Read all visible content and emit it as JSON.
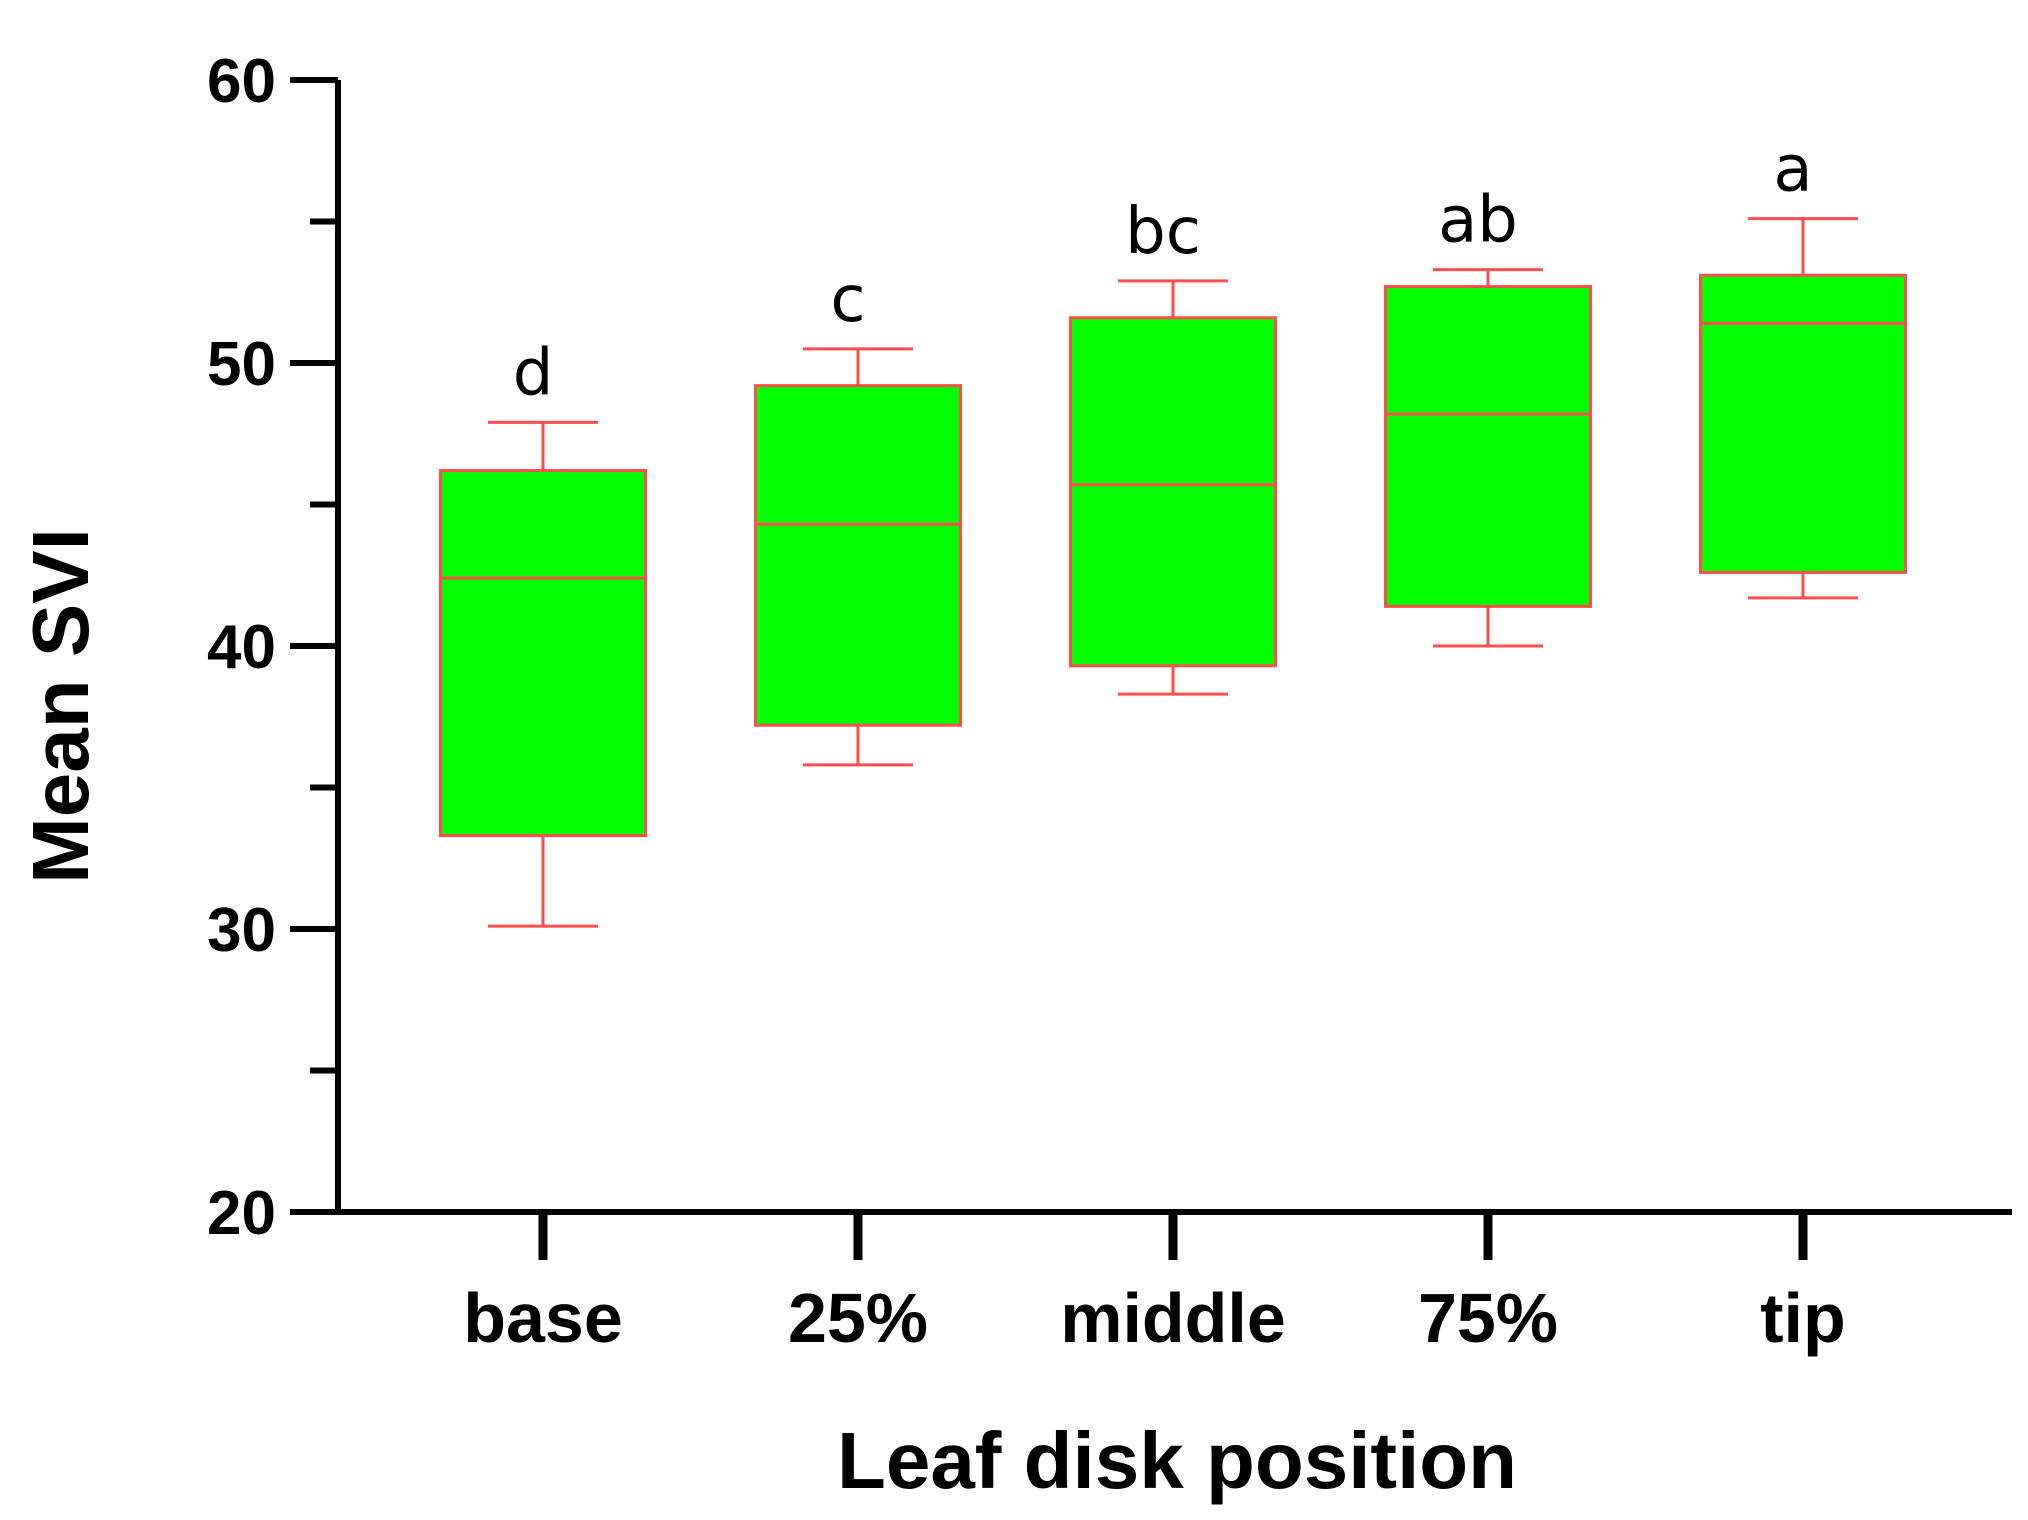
{
  "chart_data": {
    "type": "box",
    "title": "",
    "xlabel": "Leaf disk position",
    "ylabel": "Mean SVI",
    "ylim": [
      20,
      60
    ],
    "y_ticks": [
      20,
      30,
      40,
      50,
      60
    ],
    "y_minor_ticks": [
      25,
      35,
      45,
      55
    ],
    "categories": [
      "base",
      "25%",
      "middle",
      "75%",
      "tip"
    ],
    "boxes": [
      {
        "category": "base",
        "min": 30.1,
        "q1": 33.3,
        "median": 42.4,
        "q3": 46.2,
        "max": 47.9,
        "letter": "d"
      },
      {
        "category": "25%",
        "min": 35.8,
        "q1": 37.2,
        "median": 44.3,
        "q3": 49.2,
        "max": 50.5,
        "letter": "c"
      },
      {
        "category": "middle",
        "min": 38.3,
        "q1": 39.3,
        "median": 45.7,
        "q3": 51.6,
        "max": 52.9,
        "letter": "bc"
      },
      {
        "category": "75%",
        "min": 40.0,
        "q1": 41.4,
        "median": 48.2,
        "q3": 52.7,
        "max": 53.3,
        "letter": "ab"
      },
      {
        "category": "tip",
        "min": 41.7,
        "q1": 42.6,
        "median": 51.4,
        "q3": 53.1,
        "max": 55.1,
        "letter": "a"
      }
    ],
    "colors": {
      "box_fill": "#00ff00",
      "box_edge": "#ff4d4d",
      "axis": "#000000"
    },
    "grid": false,
    "legend": "none"
  }
}
